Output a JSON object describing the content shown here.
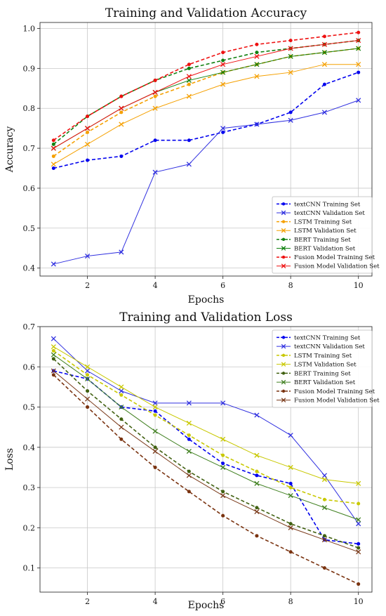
{
  "chart_data": [
    {
      "type": "line",
      "title": "Training and Validation Accuracy",
      "xlabel": "Epochs",
      "ylabel": "Accuracy",
      "x": [
        1,
        2,
        3,
        4,
        5,
        6,
        7,
        8,
        9,
        10
      ],
      "xlim": [
        0.6,
        10.4
      ],
      "ylim": [
        0.38,
        1.015
      ],
      "xticks": [
        2,
        4,
        6,
        8,
        10
      ],
      "yticks": [
        0.4,
        0.5,
        0.6,
        0.7,
        0.8,
        0.9,
        1.0
      ],
      "ytick_labels": [
        "0.4",
        "0.5",
        "0.6",
        "0.7",
        "0.8",
        "0.9",
        "1.0"
      ],
      "grid": true,
      "legend_position": "bottom-right",
      "series": [
        {
          "name": "textCNN Training Set",
          "color": "#0000ee",
          "line": "dashed",
          "marker": "dot",
          "values": [
            0.65,
            0.67,
            0.68,
            0.72,
            0.72,
            0.74,
            0.76,
            0.79,
            0.86,
            0.89
          ]
        },
        {
          "name": "textCNN Validation Set",
          "color": "#3030e0",
          "line": "solid",
          "marker": "x",
          "values": [
            0.41,
            0.43,
            0.44,
            0.64,
            0.66,
            0.75,
            0.76,
            0.77,
            0.79,
            0.82
          ]
        },
        {
          "name": "LSTM Training Set",
          "color": "#f5a000",
          "line": "dashed",
          "marker": "dot",
          "values": [
            0.68,
            0.74,
            0.79,
            0.83,
            0.86,
            0.89,
            0.91,
            0.93,
            0.94,
            0.95
          ]
        },
        {
          "name": "LSTM Validation Set",
          "color": "#f5a000",
          "line": "solid",
          "marker": "x",
          "values": [
            0.66,
            0.71,
            0.76,
            0.8,
            0.83,
            0.86,
            0.88,
            0.89,
            0.91,
            0.91
          ]
        },
        {
          "name": "BERT Training Set",
          "color": "#108010",
          "line": "dashed",
          "marker": "dot",
          "values": [
            0.71,
            0.78,
            0.83,
            0.87,
            0.9,
            0.92,
            0.94,
            0.95,
            0.96,
            0.97
          ]
        },
        {
          "name": "BERT Validation Set",
          "color": "#108010",
          "line": "solid",
          "marker": "x",
          "values": [
            0.7,
            0.75,
            0.8,
            0.84,
            0.87,
            0.89,
            0.91,
            0.93,
            0.94,
            0.95
          ]
        },
        {
          "name": "Fusion Model Training Set",
          "color": "#ee1111",
          "line": "dashed",
          "marker": "dot",
          "values": [
            0.72,
            0.78,
            0.83,
            0.87,
            0.91,
            0.94,
            0.96,
            0.97,
            0.98,
            0.99
          ]
        },
        {
          "name": "Fusion Model Validation Set",
          "color": "#ee1111",
          "line": "solid",
          "marker": "x",
          "values": [
            0.7,
            0.75,
            0.8,
            0.84,
            0.88,
            0.91,
            0.93,
            0.95,
            0.96,
            0.97
          ]
        }
      ]
    },
    {
      "type": "line",
      "title": "Training and Validation Loss",
      "xlabel": "Epochs",
      "ylabel": "Loss",
      "x": [
        1,
        2,
        3,
        4,
        5,
        6,
        7,
        8,
        9,
        10
      ],
      "xlim": [
        0.6,
        10.4
      ],
      "ylim": [
        0.04,
        0.7
      ],
      "xticks": [
        2,
        4,
        6,
        8,
        10
      ],
      "yticks": [
        0.1,
        0.2,
        0.3,
        0.4,
        0.5,
        0.6,
        0.7
      ],
      "ytick_labels": [
        "0.1",
        "0.2",
        "0.3",
        "0.4",
        "0.5",
        "0.6",
        "0.7"
      ],
      "grid": true,
      "legend_position": "top-right",
      "series": [
        {
          "name": "textCNN Training Set",
          "color": "#0000ee",
          "line": "dashed",
          "marker": "dot",
          "values": [
            0.59,
            0.57,
            0.5,
            0.49,
            0.42,
            0.36,
            0.33,
            0.31,
            0.17,
            0.16
          ]
        },
        {
          "name": "textCNN Validation Set",
          "color": "#3030e0",
          "line": "solid",
          "marker": "x",
          "values": [
            0.67,
            0.59,
            0.54,
            0.51,
            0.51,
            0.51,
            0.48,
            0.43,
            0.33,
            0.21
          ]
        },
        {
          "name": "LSTM Training Set",
          "color": "#c8c800",
          "line": "dashed",
          "marker": "dot",
          "values": [
            0.64,
            0.58,
            0.53,
            0.48,
            0.43,
            0.38,
            0.34,
            0.3,
            0.27,
            0.26
          ]
        },
        {
          "name": "LSTM Validation Set",
          "color": "#c8c800",
          "line": "solid",
          "marker": "x",
          "values": [
            0.65,
            0.6,
            0.55,
            0.5,
            0.46,
            0.42,
            0.38,
            0.35,
            0.32,
            0.31
          ]
        },
        {
          "name": "BERT Training Set",
          "color": "#406010",
          "line": "dashed",
          "marker": "dot",
          "values": [
            0.62,
            0.54,
            0.47,
            0.4,
            0.34,
            0.29,
            0.25,
            0.21,
            0.18,
            0.15
          ]
        },
        {
          "name": "BERT Validation Set",
          "color": "#408020",
          "line": "solid",
          "marker": "x",
          "values": [
            0.63,
            0.57,
            0.5,
            0.44,
            0.39,
            0.35,
            0.31,
            0.28,
            0.25,
            0.22
          ]
        },
        {
          "name": "Fusion Model Training Set",
          "color": "#7a3310",
          "line": "dashed",
          "marker": "dot",
          "values": [
            0.58,
            0.5,
            0.42,
            0.35,
            0.29,
            0.23,
            0.18,
            0.14,
            0.1,
            0.06
          ]
        },
        {
          "name": "Fusion Model Validation Set",
          "color": "#7a3a1a",
          "line": "solid",
          "marker": "x",
          "values": [
            0.59,
            0.52,
            0.45,
            0.39,
            0.33,
            0.28,
            0.24,
            0.2,
            0.17,
            0.14
          ]
        }
      ]
    }
  ]
}
